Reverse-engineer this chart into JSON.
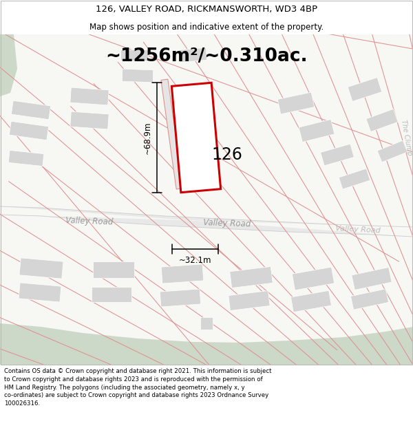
{
  "title": "126, VALLEY ROAD, RICKMANSWORTH, WD3 4BP",
  "subtitle": "Map shows position and indicative extent of the property.",
  "area_text": "~1256m²/~0.310ac.",
  "property_number": "126",
  "dim_height": "~68.9m",
  "dim_width": "~32.1m",
  "road_name_left": "Valley Road",
  "road_name_center": "Valley Road",
  "road_name_right": "Valley Road",
  "road_name_far_right": "The Clump",
  "footer_text": "Contains OS data © Crown copyright and database right 2021. This information is subject\nto Crown copyright and database rights 2023 and is reproduced with the permission of\nHM Land Registry. The polygons (including the associated geometry, namely x, y\nco-ordinates) are subject to Crown copyright and database rights 2023 Ordnance Survey\n100026316.",
  "bg_color": "#ffffff",
  "map_bg": "#f7f7f4",
  "road_fill": "#e8e8e8",
  "plot_line_color": "#cc0000",
  "cadastral_color": "#e09090",
  "building_fill": "#d5d5d5",
  "green_fill": "#ccd8c8",
  "title_fontsize": 9.5,
  "subtitle_fontsize": 8.5,
  "area_fontsize": 19
}
